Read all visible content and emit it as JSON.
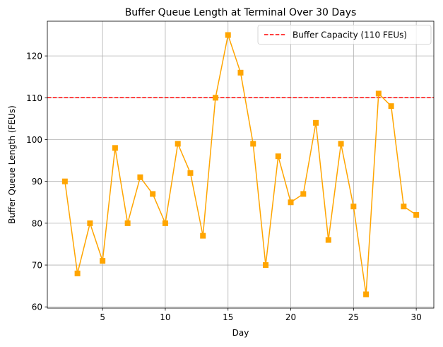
{
  "chart_data": {
    "type": "line",
    "title": "Buffer Queue Length at Terminal Over 30 Days",
    "xlabel": "Day",
    "ylabel": "Buffer Queue Length (FEUs)",
    "xlim": [
      0.6,
      31.4
    ],
    "ylim": [
      59.7,
      128.3
    ],
    "x_ticks": [
      5,
      10,
      15,
      20,
      25,
      30
    ],
    "y_ticks": [
      60,
      70,
      80,
      90,
      100,
      110,
      120
    ],
    "grid": true,
    "series": [
      {
        "x": [
          2,
          3,
          4,
          5,
          6,
          7,
          8,
          9,
          10,
          11,
          12,
          13,
          14,
          15,
          16,
          17,
          18,
          19,
          20,
          21,
          22,
          23,
          24,
          25,
          26,
          27,
          28,
          29,
          30
        ],
        "values": [
          90,
          68,
          80,
          71,
          98,
          80,
          91,
          87,
          80,
          99,
          92,
          77,
          110,
          125,
          116,
          99,
          70,
          96,
          85,
          87,
          104,
          76,
          99,
          84,
          63,
          111,
          108,
          84,
          82
        ],
        "color": "#ffa500",
        "marker": "square"
      }
    ],
    "reference_lines": [
      {
        "name": "Buffer Capacity (110 FEUs)",
        "y": 110,
        "color": "#ff0000",
        "style": "dashed"
      }
    ],
    "legend": {
      "position": "top-right",
      "entries": [
        "Buffer Capacity (110 FEUs)"
      ]
    }
  }
}
